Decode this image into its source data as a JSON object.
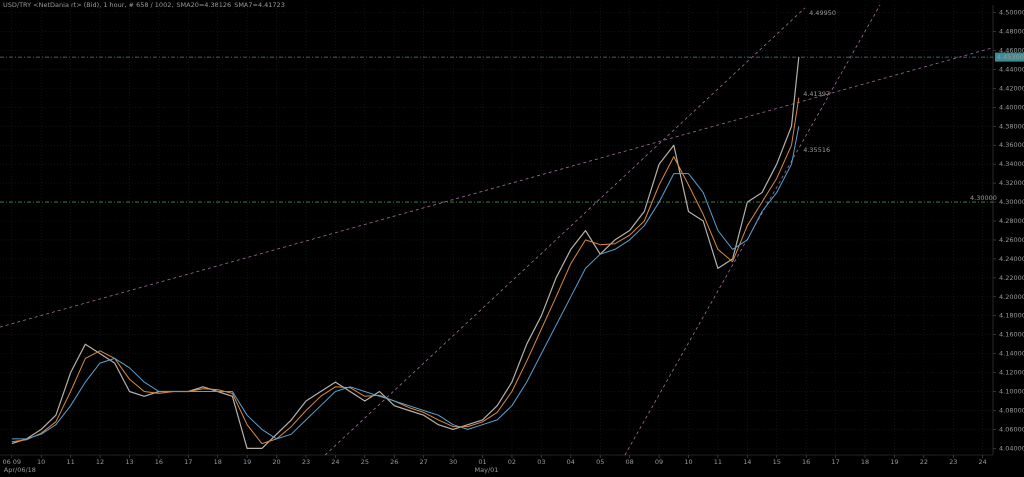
{
  "chart_data": {
    "type": "line",
    "title": "USD/TRY <NetDania rt> (Bid), 1 hour, # 658 / 1002,",
    "grid": true,
    "background": "#000000",
    "xlim": [
      -0.4,
      33.35
    ],
    "ylim": [
      4.033,
      4.508
    ],
    "xticks": [
      {
        "value": 0,
        "label": "06 09"
      },
      {
        "value": 1,
        "label": "10"
      },
      {
        "value": 2,
        "label": "11"
      },
      {
        "value": 3,
        "label": "12"
      },
      {
        "value": 4,
        "label": "13"
      },
      {
        "value": 5,
        "label": "16"
      },
      {
        "value": 6,
        "label": "17"
      },
      {
        "value": 7,
        "label": "18"
      },
      {
        "value": 8,
        "label": "19"
      },
      {
        "value": 9,
        "label": "20"
      },
      {
        "value": 10,
        "label": "23"
      },
      {
        "value": 11,
        "label": "24"
      },
      {
        "value": 12,
        "label": "25"
      },
      {
        "value": 13,
        "label": "26"
      },
      {
        "value": 14,
        "label": "27"
      },
      {
        "value": 15,
        "label": "30"
      },
      {
        "value": 16,
        "label": "01"
      },
      {
        "value": 17,
        "label": "02"
      },
      {
        "value": 18,
        "label": "03"
      },
      {
        "value": 19,
        "label": "04"
      },
      {
        "value": 20,
        "label": "05"
      },
      {
        "value": 21,
        "label": "08"
      },
      {
        "value": 22,
        "label": "09"
      },
      {
        "value": 23,
        "label": "10"
      },
      {
        "value": 24,
        "label": "11"
      },
      {
        "value": 25,
        "label": "14"
      },
      {
        "value": 26,
        "label": "15"
      },
      {
        "value": 27,
        "label": "16"
      },
      {
        "value": 28,
        "label": "17"
      },
      {
        "value": 29,
        "label": "18"
      },
      {
        "value": 30,
        "label": "19"
      },
      {
        "value": 31,
        "label": "22"
      },
      {
        "value": 32,
        "label": "23"
      },
      {
        "value": 33,
        "label": "24"
      }
    ],
    "x_sublabels": [
      {
        "value": 0,
        "label": "Apr/06/18"
      },
      {
        "value": 16,
        "label": "May/01"
      }
    ],
    "yticks": [
      {
        "value": 4.04,
        "label": "4.04000"
      },
      {
        "value": 4.06,
        "label": "4.06000"
      },
      {
        "value": 4.08,
        "label": "4.08000"
      },
      {
        "value": 4.1,
        "label": "4.10000"
      },
      {
        "value": 4.12,
        "label": "4.12000"
      },
      {
        "value": 4.14,
        "label": "4.14000"
      },
      {
        "value": 4.16,
        "label": "4.16000"
      },
      {
        "value": 4.18,
        "label": "4.18000"
      },
      {
        "value": 4.2,
        "label": "4.20000"
      },
      {
        "value": 4.22,
        "label": "4.22000"
      },
      {
        "value": 4.24,
        "label": "4.24000"
      },
      {
        "value": 4.26,
        "label": "4.26000"
      },
      {
        "value": 4.28,
        "label": "4.28000"
      },
      {
        "value": 4.3,
        "label": "4.30000"
      },
      {
        "value": 4.32,
        "label": "4.32000"
      },
      {
        "value": 4.34,
        "label": "4.34000"
      },
      {
        "value": 4.36,
        "label": "4.36000"
      },
      {
        "value": 4.38,
        "label": "4.38000"
      },
      {
        "value": 4.4,
        "label": "4.40000"
      },
      {
        "value": 4.42,
        "label": "4.42000"
      },
      {
        "value": 4.44,
        "label": "4.44000"
      },
      {
        "value": 4.46,
        "label": "4.46000"
      },
      {
        "value": 4.48,
        "label": "4.48000"
      },
      {
        "value": 4.5,
        "label": "4.50000"
      }
    ],
    "x": [
      0,
      0.5,
      1,
      1.5,
      2,
      2.5,
      3,
      3.5,
      4,
      4.5,
      5,
      5.5,
      6,
      6.5,
      7,
      7.5,
      8,
      8.5,
      9,
      9.5,
      10,
      10.5,
      11,
      11.5,
      12,
      12.5,
      13,
      13.5,
      14,
      14.5,
      15,
      15.5,
      16,
      16.5,
      17,
      17.5,
      18,
      18.5,
      19,
      19.5,
      20,
      20.5,
      21,
      21.5,
      22,
      22.5,
      23,
      23.5,
      24,
      24.5,
      25,
      25.5,
      26,
      26.5,
      26.75
    ],
    "series": [
      {
        "color": "#b8b0a8",
        "width": 1.2,
        "values": [
          4.045,
          4.05,
          4.06,
          4.075,
          4.12,
          4.15,
          4.14,
          4.13,
          4.1,
          4.095,
          4.1,
          4.1,
          4.1,
          4.105,
          4.1,
          4.095,
          4.04,
          4.04,
          4.055,
          4.07,
          4.09,
          4.1,
          4.11,
          4.1,
          4.09,
          4.1,
          4.085,
          4.08,
          4.075,
          4.065,
          4.06,
          4.065,
          4.07,
          4.085,
          4.11,
          4.15,
          4.18,
          4.22,
          4.25,
          4.27,
          4.245,
          4.26,
          4.27,
          4.29,
          4.34,
          4.36,
          4.29,
          4.28,
          4.23,
          4.24,
          4.3,
          4.31,
          4.34,
          4.38,
          4.453
        ]
      },
      {
        "name": "SMA7=4.41723",
        "color": "#d98a3c",
        "width": 1,
        "values": [
          4.047,
          4.049,
          4.056,
          4.068,
          4.1,
          4.135,
          4.143,
          4.135,
          4.113,
          4.1,
          4.098,
          4.1,
          4.1,
          4.103,
          4.102,
          4.098,
          4.065,
          4.045,
          4.05,
          4.063,
          4.08,
          4.095,
          4.105,
          4.104,
          4.095,
          4.096,
          4.09,
          4.083,
          4.078,
          4.07,
          4.063,
          4.063,
          4.068,
          4.078,
          4.1,
          4.132,
          4.166,
          4.2,
          4.235,
          4.26,
          4.255,
          4.256,
          4.265,
          4.28,
          4.318,
          4.348,
          4.318,
          4.287,
          4.25,
          4.237,
          4.275,
          4.3,
          4.325,
          4.36,
          4.41
        ]
      },
      {
        "name": "SMA20=4.38126",
        "color": "#5aa0d0",
        "width": 1,
        "values": [
          4.05,
          4.05,
          4.055,
          4.065,
          4.085,
          4.11,
          4.13,
          4.135,
          4.125,
          4.11,
          4.1,
          4.1,
          4.1,
          4.1,
          4.1,
          4.1,
          4.075,
          4.06,
          4.05,
          4.055,
          4.07,
          4.085,
          4.1,
          4.105,
          4.1,
          4.095,
          4.09,
          4.085,
          4.08,
          4.075,
          4.065,
          4.06,
          4.065,
          4.07,
          4.085,
          4.11,
          4.14,
          4.17,
          4.2,
          4.23,
          4.245,
          4.25,
          4.26,
          4.275,
          4.3,
          4.33,
          4.33,
          4.31,
          4.27,
          4.25,
          4.26,
          4.29,
          4.31,
          4.34,
          4.38
        ]
      }
    ],
    "trend_lines": [
      {
        "color": "#a0709a",
        "x": [
          -0.4,
          33.35
        ],
        "y": [
          4.168,
          4.463
        ],
        "label": {
          "x": 26.9,
          "y": 4.41397,
          "text": "4.41397"
        }
      },
      {
        "color": "#a0709a",
        "x": [
          10.65,
          26.96
        ],
        "y": [
          4.033,
          4.505
        ],
        "label": {
          "x": 27.1,
          "y": 4.4995,
          "text": "4.49950"
        }
      },
      {
        "color": "#a0709a",
        "x": [
          20.84,
          29.51
        ],
        "y": [
          4.033,
          4.508
        ],
        "label": {
          "x": 26.9,
          "y": 4.35516,
          "text": "4.35516"
        }
      }
    ],
    "horizontal_lines": [
      {
        "value": 4.453,
        "label": "4.45300",
        "color": "#3c8c96"
      },
      {
        "value": 4.3,
        "label": "4.30000",
        "color": "#4d8a4d"
      }
    ]
  }
}
